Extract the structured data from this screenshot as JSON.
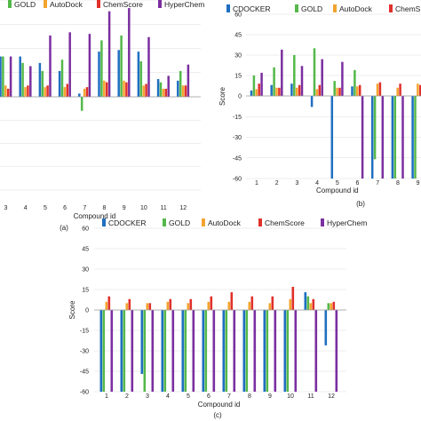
{
  "colors": {
    "CDOCKER": "#1f6fc1",
    "GOLD": "#54b84a",
    "AutoDock": "#f3a42e",
    "ChemScore": "#e0312b",
    "HyperChem": "#7b2fa0"
  },
  "chart_data": [
    {
      "panel": "a",
      "caption": "(a)",
      "type": "bar",
      "xlabel": "Compound id",
      "ylabel": "",
      "ylim": [
        -60,
        60
      ],
      "categories": [
        "3",
        "4",
        "5",
        "6",
        "7",
        "8",
        "9",
        "10",
        "11",
        "12"
      ],
      "legend": [
        "GOLD",
        "AutoDock",
        "ChemScore",
        "HyperChem"
      ],
      "series": [
        {
          "name": "CDOCKER",
          "values": [
            25,
            25,
            21,
            16,
            2,
            28,
            29,
            28,
            11,
            10
          ]
        },
        {
          "name": "GOLD",
          "values": [
            25,
            21,
            16,
            23,
            -9,
            35,
            38,
            22,
            9,
            16
          ]
        },
        {
          "name": "AutoDock",
          "values": [
            7,
            6,
            6,
            6,
            5,
            10,
            10,
            7,
            5,
            7
          ]
        },
        {
          "name": "ChemScore",
          "values": [
            5,
            7,
            7,
            8,
            6,
            9,
            9,
            8,
            5,
            7
          ]
        },
        {
          "name": "HyperChem",
          "values": [
            25,
            19,
            38,
            40,
            39,
            53,
            55,
            37,
            13,
            20
          ]
        }
      ]
    },
    {
      "panel": "b",
      "caption": "(b)",
      "type": "bar",
      "xlabel": "Compound id",
      "ylabel": "Score",
      "ylim": [
        -60,
        60
      ],
      "yticks": [
        60,
        45,
        30,
        15,
        0,
        -15,
        -30,
        -45,
        -60
      ],
      "categories": [
        "1",
        "2",
        "3",
        "4",
        "5",
        "6",
        "7",
        "8",
        "9"
      ],
      "legend": [
        "CDOCKER",
        "GOLD",
        "AutoDock",
        "ChemS"
      ],
      "series": [
        {
          "name": "CDOCKER",
          "values": [
            4,
            8,
            9,
            -8,
            -60,
            7,
            -60,
            -60,
            -60
          ]
        },
        {
          "name": "GOLD",
          "values": [
            15,
            21,
            30,
            35,
            11,
            19,
            -46,
            -60,
            -60
          ]
        },
        {
          "name": "AutoDock",
          "values": [
            5,
            6,
            6,
            5,
            6,
            7,
            9,
            6,
            9
          ]
        },
        {
          "name": "ChemScore",
          "values": [
            9,
            6,
            8,
            8,
            6,
            8,
            10,
            9,
            8
          ]
        },
        {
          "name": "HyperChem",
          "values": [
            17,
            34,
            22,
            27,
            25,
            -60,
            -60,
            -60,
            -60
          ]
        }
      ]
    },
    {
      "panel": "c",
      "caption": "(c)",
      "type": "bar",
      "xlabel": "Compound id",
      "ylabel": "Score",
      "ylim": [
        -60,
        60
      ],
      "yticks": [
        60,
        45,
        30,
        15,
        0,
        -15,
        -30,
        -45,
        -60
      ],
      "categories": [
        "1",
        "2",
        "3",
        "4",
        "5",
        "6",
        "7",
        "8",
        "9",
        "10",
        "11",
        "12"
      ],
      "legend": [
        "CDOCKER",
        "GOLD",
        "AutoDock",
        "ChemScore",
        "HyperChem"
      ],
      "series": [
        {
          "name": "CDOCKER",
          "values": [
            -60,
            -60,
            -47,
            -60,
            -60,
            -60,
            -60,
            -60,
            -60,
            -60,
            13,
            -26
          ]
        },
        {
          "name": "GOLD",
          "values": [
            -60,
            -60,
            -60,
            -60,
            -60,
            -60,
            -60,
            -60,
            -60,
            -60,
            10,
            5
          ]
        },
        {
          "name": "AutoDock",
          "values": [
            6,
            5,
            5,
            6,
            5,
            6,
            6,
            6,
            5,
            8,
            5,
            5
          ]
        },
        {
          "name": "ChemScore",
          "values": [
            10,
            8,
            5,
            8,
            8,
            10,
            13,
            10,
            10,
            17,
            8,
            6
          ]
        },
        {
          "name": "HyperChem",
          "values": [
            -60,
            -60,
            -60,
            -60,
            -60,
            -60,
            -60,
            -60,
            -60,
            -60,
            -60,
            -60
          ]
        }
      ]
    }
  ]
}
